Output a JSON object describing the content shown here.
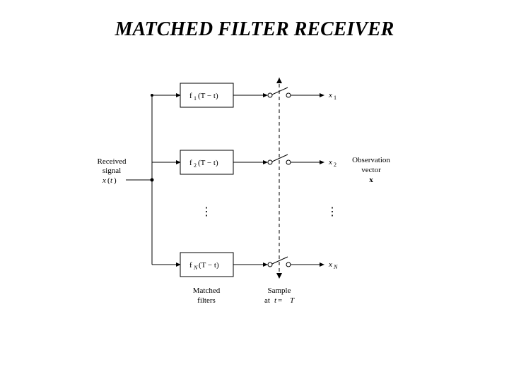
{
  "title": {
    "text": "MATCHED FILTER RECEIVER",
    "fontsize": 28,
    "y": 26
  },
  "diagram": {
    "stroke": "#000000",
    "strokeWidth": 1,
    "background": "#ffffff",
    "labelFontSize": 11,
    "smallFontSize": 10,
    "subFontSize": 8,
    "input": {
      "line1": "Received",
      "line2": "signal",
      "line3_a": "x",
      "line3_b": "(",
      "line3_c": "t",
      "line3_d": ")"
    },
    "filters": [
      {
        "prefix": "f",
        "sub": "1",
        "rest": "(T − t)"
      },
      {
        "prefix": "f",
        "sub": "2",
        "rest": "(T − t)"
      },
      {
        "prefix": "f",
        "sub": "N",
        "rest": "(T − t)"
      }
    ],
    "outputs": [
      {
        "prefix": "x",
        "sub": "1"
      },
      {
        "prefix": "x",
        "sub": "2"
      },
      {
        "prefix": "x",
        "sub": "N"
      }
    ],
    "filtersLabel": {
      "l1": "Matched",
      "l2": "filters"
    },
    "sampleLabel": {
      "l1": "Sample",
      "l2a": "at ",
      "l2b": "t",
      "l2c": " = ",
      "l2d": "T"
    },
    "obsLabel": {
      "l1": "Observation",
      "l2": "vector",
      "l3": "x"
    },
    "ellipsis": "⋮"
  }
}
